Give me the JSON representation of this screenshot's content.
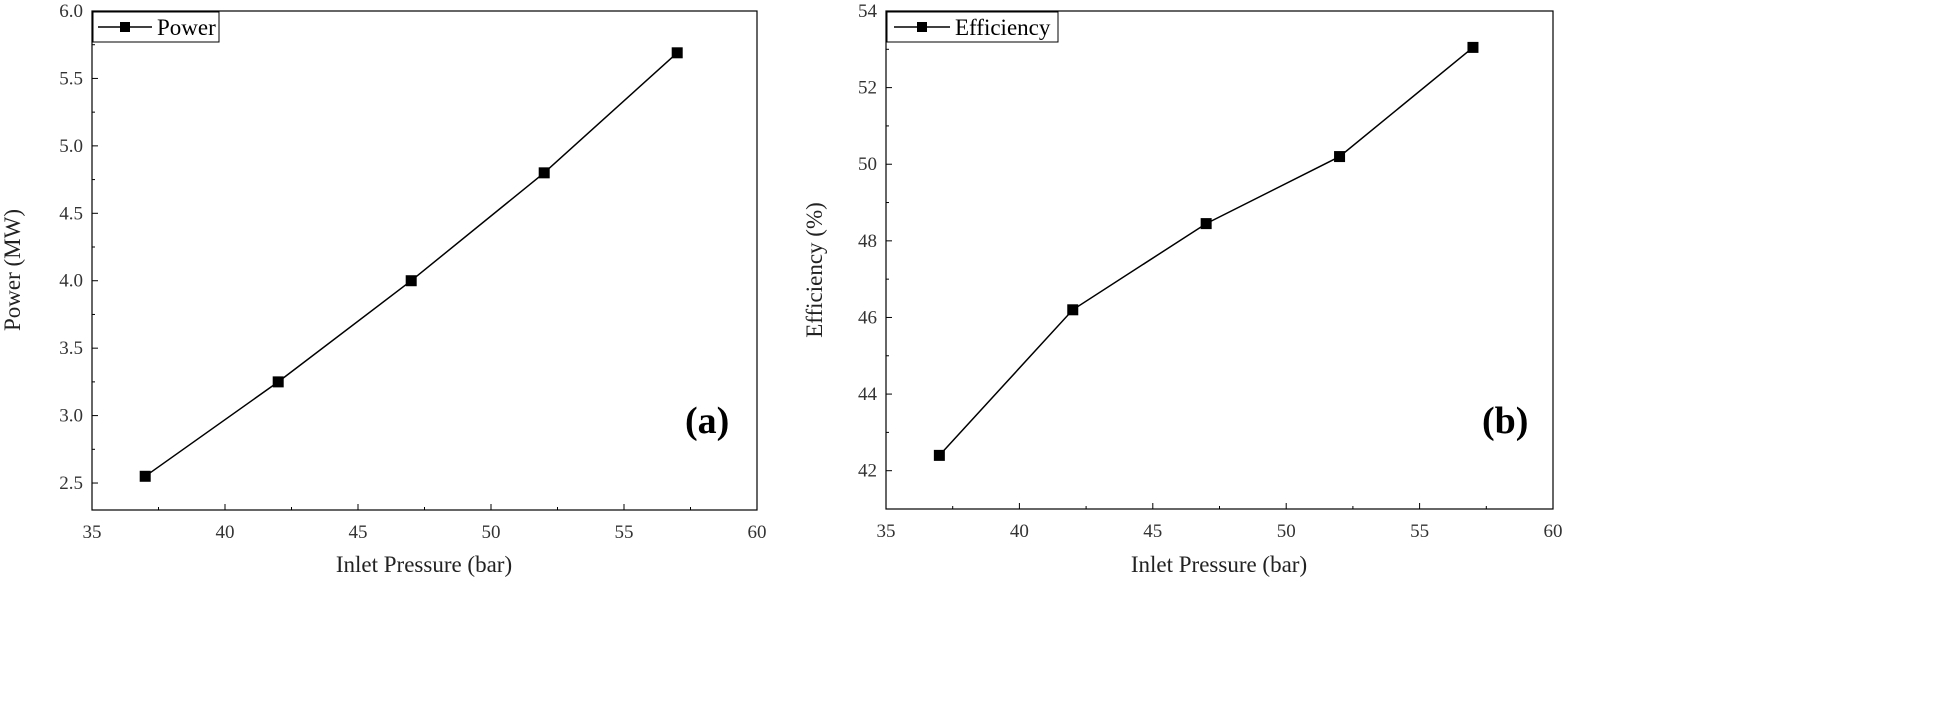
{
  "chart_data": [
    {
      "type": "line",
      "panel_label": "(a)",
      "xlabel": "Inlet Pressure (bar)",
      "ylabel": "Power (MW)",
      "xlim": [
        35,
        60
      ],
      "ylim": [
        2.3,
        6.0
      ],
      "xticks": [
        35,
        40,
        45,
        50,
        55,
        60
      ],
      "xtick_labels": [
        "35",
        "40",
        "45",
        "50",
        "55",
        "60"
      ],
      "yticks": [
        2.5,
        3.0,
        3.5,
        4.0,
        4.5,
        5.0,
        5.5,
        6.0
      ],
      "ytick_labels": [
        "2.5",
        "3.0",
        "3.5",
        "4.0",
        "4.5",
        "5.0",
        "5.5",
        "6.0"
      ],
      "x": [
        37,
        42,
        47,
        52,
        57
      ],
      "series": [
        {
          "name": "Power",
          "values": [
            2.55,
            3.25,
            4.0,
            4.8,
            5.69
          ]
        }
      ],
      "legend_position": "top-left",
      "grid": false,
      "color": "#000000"
    },
    {
      "type": "line",
      "panel_label": "(b)",
      "xlabel": "Inlet Pressure (bar)",
      "ylabel": "Efficiency (%)",
      "xlim": [
        35,
        60
      ],
      "ylim": [
        41,
        54
      ],
      "xticks": [
        35,
        40,
        45,
        50,
        55,
        60
      ],
      "xtick_labels": [
        "35",
        "40",
        "45",
        "50",
        "55",
        "60"
      ],
      "yticks": [
        42,
        44,
        46,
        48,
        50,
        52,
        54
      ],
      "ytick_labels": [
        "42",
        "44",
        "46",
        "48",
        "50",
        "52",
        "54"
      ],
      "x": [
        37,
        42,
        47,
        52,
        57
      ],
      "series": [
        {
          "name": "Efficiency",
          "values": [
            42.4,
            46.2,
            48.45,
            50.2,
            53.05
          ]
        }
      ],
      "legend_position": "top-left",
      "grid": false,
      "color": "#000000"
    }
  ]
}
